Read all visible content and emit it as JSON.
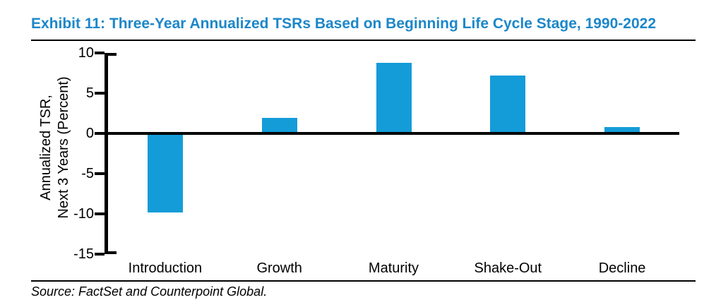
{
  "title": "Exhibit 11: Three-Year Annualized TSRs Based on Beginning Life Cycle Stage, 1990-2022",
  "source": "Source: FactSet and Counterpoint Global.",
  "colors": {
    "title_blue": "#1C87C9",
    "bar_blue": "#149CD8",
    "axis_black": "#000000"
  },
  "chart_data": {
    "type": "bar",
    "categories": [
      "Introduction",
      "Growth",
      "Maturity",
      "Shake-Out",
      "Decline"
    ],
    "values": [
      -9.8,
      1.9,
      8.8,
      7.2,
      0.8
    ],
    "title": "",
    "xlabel": "",
    "ylabel": "Annualized TSR,\nNext 3 Years (Percent)",
    "ylabel_lines": [
      "Annualized TSR,",
      "Next 3 Years (Percent)"
    ],
    "ylim": [
      -15,
      10
    ],
    "yticks": [
      10,
      5,
      0,
      -5,
      -10,
      -15
    ],
    "grid": false,
    "legend": false,
    "bar_color": "#149CD8"
  }
}
